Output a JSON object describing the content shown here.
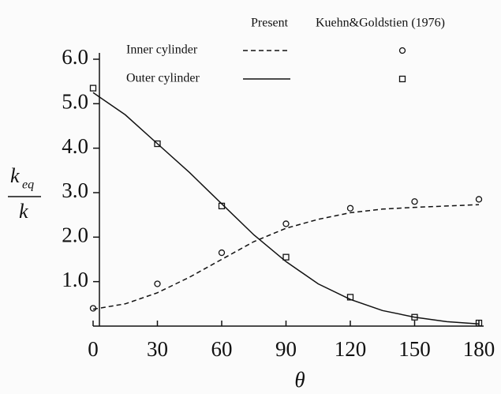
{
  "chart_data": {
    "type": "line",
    "xlabel": "θ",
    "ylabel": {
      "numerator": "k",
      "subscript": "eq",
      "denominator": "k"
    },
    "legend": {
      "columns": [
        "Present",
        "Kuehn&Goldstien (1976)"
      ],
      "rows": [
        "Inner cylinder",
        "Outer cylinder"
      ]
    },
    "xlim": [
      0,
      180
    ],
    "xticks": [
      0,
      30,
      60,
      90,
      120,
      150,
      180
    ],
    "ylim": [
      0,
      6
    ],
    "yticks": [
      {
        "value": 1,
        "label": "1.0"
      },
      {
        "value": 2,
        "label": "2.0"
      },
      {
        "value": 3,
        "label": "3.0"
      },
      {
        "value": 4,
        "label": "4.0"
      },
      {
        "value": 5,
        "label": "5.0"
      },
      {
        "value": 6,
        "label": "6.0"
      }
    ],
    "series": [
      {
        "color": "#111111",
        "dash": true,
        "marker": "none",
        "x": [
          0,
          15,
          30,
          45,
          60,
          75,
          90,
          105,
          120,
          135,
          150,
          165,
          180
        ],
        "values": [
          0.38,
          0.5,
          0.75,
          1.1,
          1.5,
          1.9,
          2.2,
          2.4,
          2.55,
          2.63,
          2.67,
          2.7,
          2.73
        ]
      },
      {
        "color": "#111111",
        "dash": false,
        "marker": "none",
        "x": [
          0,
          15,
          30,
          45,
          60,
          75,
          90,
          105,
          120,
          135,
          150,
          165,
          180
        ],
        "values": [
          5.25,
          4.75,
          4.1,
          3.45,
          2.75,
          2.05,
          1.45,
          0.95,
          0.6,
          0.35,
          0.2,
          0.1,
          0.05
        ]
      },
      {
        "color": "#111111",
        "dash": false,
        "marker": "circle",
        "x": [
          0,
          30,
          60,
          90,
          120,
          150,
          180
        ],
        "values": [
          0.4,
          0.95,
          1.65,
          2.3,
          2.65,
          2.8,
          2.85
        ]
      },
      {
        "color": "#111111",
        "dash": false,
        "marker": "square",
        "x": [
          0,
          30,
          60,
          90,
          120,
          150,
          180
        ],
        "values": [
          5.35,
          4.1,
          2.7,
          1.55,
          0.65,
          0.2,
          0.07
        ]
      }
    ]
  }
}
